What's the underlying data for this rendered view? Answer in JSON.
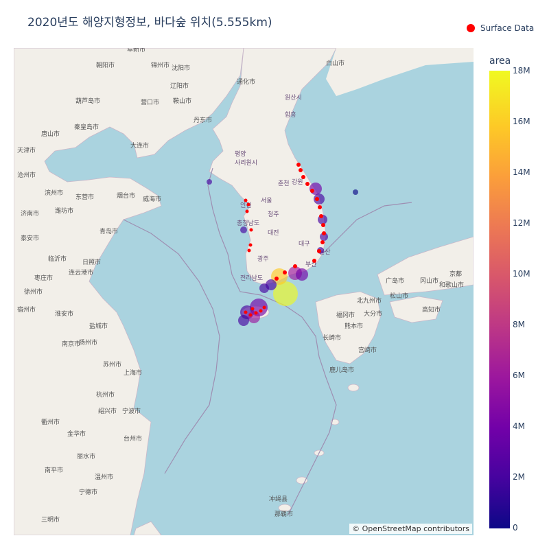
{
  "title": "2020년도 해양지형정보, 바다숲 위치(5.555km)",
  "legend": {
    "label": "Surface Data",
    "color": "#ff0000"
  },
  "colorbar": {
    "title": "area",
    "ticks": [
      "18M",
      "16M",
      "14M",
      "12M",
      "10M",
      "8M",
      "6M",
      "4M",
      "2M",
      "0"
    ],
    "range": [
      0,
      18000000
    ],
    "colorscale": [
      "#0d0887",
      "#46039f",
      "#7201a8",
      "#9c179e",
      "#bd3786",
      "#d8576b",
      "#ed7953",
      "#fb9f3a",
      "#fdca26",
      "#f0f921"
    ]
  },
  "attribution": "© OpenStreetMap contributors",
  "map_colors": {
    "water": "#aad3df",
    "land": "#f2efe9",
    "surface_point": "#ff0000"
  },
  "place_names": [
    "阜新市",
    "锦州市",
    "朝阳市",
    "葫芦岛市",
    "沈阳市",
    "辽阳市",
    "鞍山市",
    "营口市",
    "丹东市",
    "大连市",
    "秦皇岛市",
    "唐山市",
    "天津市",
    "沧州市",
    "滨州市",
    "东营市",
    "烟台市",
    "威海市",
    "潍坊市",
    "青岛市",
    "济南市",
    "泰安市",
    "临沂市",
    "日照市",
    "连云港市",
    "枣庄市",
    "徐州市",
    "宿州市",
    "淮安市",
    "盐城市",
    "扬州市",
    "南京市",
    "苏州市",
    "上海市",
    "杭州市",
    "宁波市",
    "绍兴市",
    "金华市",
    "丽水市",
    "温州市",
    "台州市",
    "衢州市",
    "南平市",
    "宁德市",
    "三明市",
    "白山市",
    "通化市",
    "원산시",
    "함흥",
    "평양",
    "사리원시",
    "서울",
    "인천",
    "춘천",
    "강원",
    "청주",
    "대전",
    "대구",
    "울산",
    "부산",
    "광주",
    "전라남도",
    "충청남도",
    "广岛市",
    "冈山市",
    "松山市",
    "高知市",
    "北九州市",
    "福冈市",
    "大分市",
    "熊本市",
    "长崎市",
    "宫崎市",
    "鹿儿岛市",
    "和歌山市",
    "京都",
    "冲绳县",
    "那覇市"
  ]
}
